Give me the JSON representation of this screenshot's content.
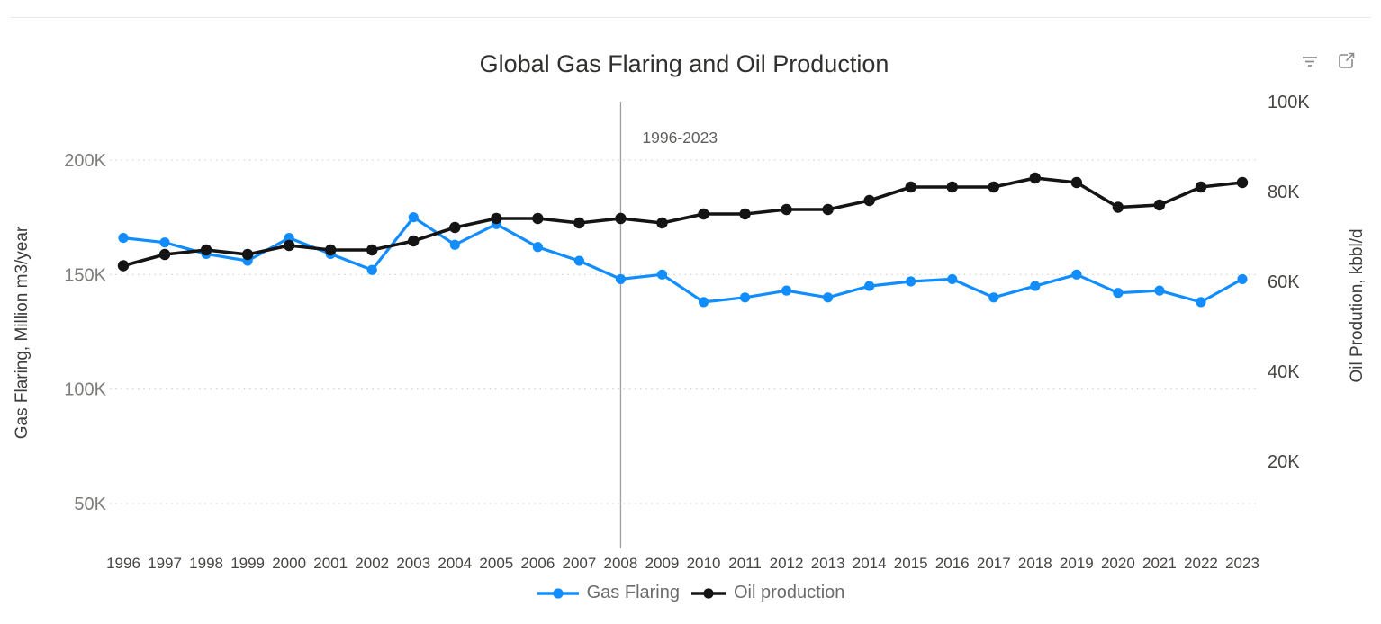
{
  "chart_data": {
    "type": "line",
    "title": "Global Gas Flaring and Oil Production",
    "x": [
      "1996",
      "1997",
      "1998",
      "1999",
      "2000",
      "2001",
      "2002",
      "2003",
      "2004",
      "2005",
      "2006",
      "2007",
      "2008",
      "2009",
      "2010",
      "2011",
      "2012",
      "2013",
      "2014",
      "2015",
      "2016",
      "2017",
      "2018",
      "2019",
      "2020",
      "2021",
      "2022",
      "2023"
    ],
    "series": [
      {
        "name": "Gas Flaring",
        "axis": "left",
        "color": "#118DFF",
        "marker": "circle",
        "values": [
          166,
          164,
          159,
          156,
          166,
          159,
          152,
          175,
          163,
          172,
          162,
          156,
          148,
          150,
          138,
          140,
          143,
          140,
          145,
          147,
          148,
          140,
          145,
          150,
          142,
          143,
          138,
          148
        ]
      },
      {
        "name": "Oil production",
        "axis": "right",
        "color": "#141414",
        "marker": "circle",
        "values": [
          63.5,
          66,
          67,
          66,
          68,
          67,
          67,
          69,
          72,
          74,
          74,
          73,
          74,
          73,
          75,
          75,
          76,
          76,
          78,
          81,
          81,
          81,
          83,
          82,
          76.5,
          77,
          81,
          82
        ]
      }
    ],
    "left_axis": {
      "title": "Gas Flaring, Million m3/year",
      "tick_values": [
        200,
        150,
        100,
        50
      ],
      "tick_labels": [
        "200K",
        "150K",
        "100K",
        "50K"
      ],
      "approx_range_k": [
        29,
        226
      ]
    },
    "right_axis": {
      "title": "Oil Prodution, kbbl/d",
      "tick_values": [
        100,
        80,
        60,
        40,
        20
      ],
      "tick_labels": [
        "100K",
        "80K",
        "60K",
        "40K",
        "20K"
      ],
      "range_k": [
        0,
        100
      ]
    },
    "annotation": {
      "text": "1996-2023",
      "at_year": "2008"
    },
    "grid": "horizontal dotted",
    "legend_position": "bottom-center"
  },
  "header_icons": {
    "filter": "filter-icon",
    "focus": "focus-mode-icon"
  },
  "colors": {
    "gas_flaring": "#118DFF",
    "oil_production": "#141414",
    "gridline": "#d9d7d4",
    "reference_line": "#a0a0a0",
    "tick_left": "#7f7d7a",
    "tick_dark": "#474542",
    "axis_title": "#3d3c3a",
    "legend_text": "#6b6b6b",
    "annotation_text": "#5f5e5c"
  }
}
